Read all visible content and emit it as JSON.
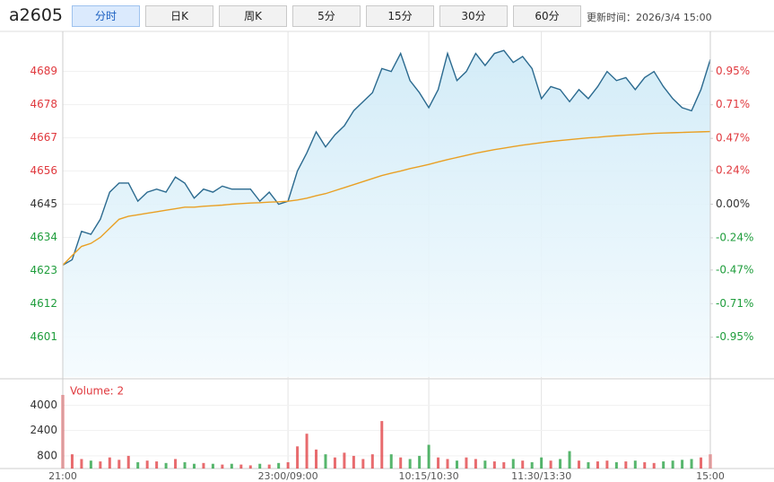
{
  "toolbar": {
    "symbol": "a2605",
    "tabs": [
      "分时",
      "日K",
      "周K",
      "5分",
      "15分",
      "30分",
      "60分"
    ],
    "active_tab": 0,
    "update_time": "更新时间：2026/3/4 15:00"
  },
  "chart_data": [
    {
      "type": "line",
      "x": [
        0,
        5,
        10,
        15,
        20,
        25,
        30,
        35,
        40,
        45,
        50,
        55,
        60,
        65,
        70,
        75,
        80,
        85,
        90,
        95,
        100,
        105,
        110,
        115,
        120,
        125,
        130,
        135,
        140,
        145,
        150,
        155,
        160,
        165,
        170,
        175,
        180,
        185,
        190,
        195,
        200,
        205,
        210,
        215,
        220,
        225,
        230,
        235,
        240,
        245,
        250,
        255,
        260,
        265,
        270,
        275,
        280,
        285,
        290,
        295,
        300,
        305,
        310,
        315,
        320,
        325,
        330,
        335,
        340,
        345
      ],
      "xlim": [
        0,
        345
      ],
      "xticks": [
        {
          "value": 0,
          "label": "21:00"
        },
        {
          "value": 120,
          "label": "23:00/09:00"
        },
        {
          "value": 195,
          "label": "10:15/10:30"
        },
        {
          "value": 255,
          "label": "11:30/13:30"
        },
        {
          "value": 345,
          "label": "15:00"
        }
      ],
      "series": [
        {
          "name": "price",
          "color": "#2b6a8f",
          "values": [
            4624.8,
            4626.6,
            4636,
            4635,
            4640,
            4649,
            4652,
            4652,
            4646,
            4649,
            4650,
            4649,
            4654,
            4652,
            4647,
            4650,
            4649,
            4651,
            4650,
            4650,
            4650,
            4646,
            4649,
            4645,
            4646,
            4656,
            4662,
            4669,
            4664,
            4668,
            4671,
            4676,
            4679,
            4682,
            4690,
            4689,
            4695,
            4686,
            4682,
            4677,
            4683,
            4695,
            4686,
            4689,
            4695,
            4691,
            4695,
            4696,
            4692,
            4694,
            4690,
            4680,
            4684,
            4683,
            4679,
            4683,
            4680,
            4684,
            4689,
            4686,
            4687,
            4683,
            4687,
            4689,
            4684,
            4680,
            4677,
            4676,
            4683,
            4693
          ]
        },
        {
          "name": "average",
          "color": "#e9a024",
          "values": [
            4624.8,
            4628,
            4631,
            4632,
            4634,
            4637,
            4640,
            4641,
            4641.5,
            4642,
            4642.5,
            4643,
            4643.5,
            4644,
            4644,
            4644.3,
            4644.5,
            4644.7,
            4645,
            4645.2,
            4645.4,
            4645.5,
            4645.7,
            4645.8,
            4646,
            4646.4,
            4647,
            4647.8,
            4648.5,
            4649.5,
            4650.5,
            4651.5,
            4652.5,
            4653.5,
            4654.5,
            4655.3,
            4656,
            4656.8,
            4657.5,
            4658.2,
            4659,
            4659.8,
            4660.5,
            4661.2,
            4661.9,
            4662.5,
            4663.1,
            4663.6,
            4664.1,
            4664.6,
            4665,
            4665.4,
            4665.8,
            4666.1,
            4666.4,
            4666.7,
            4667,
            4667.2,
            4667.5,
            4667.7,
            4667.9,
            4668.1,
            4668.3,
            4668.5,
            4668.6,
            4668.7,
            4668.8,
            4668.9,
            4669,
            4669.1
          ]
        }
      ],
      "ylim": [
        4587.7,
        4702.3
      ],
      "yticks": [
        4689,
        4678,
        4667,
        4656,
        4645,
        4634,
        4623,
        4612,
        4601
      ],
      "y2lim": [
        -1.2336,
        1.2336
      ],
      "y2ticks": [
        {
          "value": 0.95,
          "label": "0.95%"
        },
        {
          "value": 0.71,
          "label": "0.71%"
        },
        {
          "value": 0.47,
          "label": "0.47%"
        },
        {
          "value": 0.24,
          "label": "0.24%"
        },
        {
          "value": 0,
          "label": "0.00%"
        },
        {
          "value": -0.24,
          "label": "-0.24%"
        },
        {
          "value": -0.47,
          "label": "-0.47%"
        },
        {
          "value": -0.71,
          "label": "-0.71%"
        },
        {
          "value": -0.95,
          "label": "-0.95%"
        }
      ],
      "up_color": "#e0393e",
      "down_color": "#1f9d3c",
      "flat_color": "#333333",
      "fill_color": "#d6eef8"
    },
    {
      "type": "bar",
      "label": "Volume: 2",
      "values": [
        4650,
        900,
        600,
        500,
        450,
        700,
        550,
        800,
        400,
        500,
        450,
        350,
        600,
        400,
        300,
        350,
        300,
        250,
        300,
        250,
        200,
        300,
        250,
        350,
        400,
        1400,
        2200,
        1200,
        900,
        700,
        1000,
        800,
        600,
        900,
        3000,
        900,
        700,
        600,
        800,
        1500,
        700,
        600,
        500,
        700,
        600,
        500,
        450,
        400,
        600,
        500,
        400,
        700,
        500,
        600,
        1100,
        500,
        400,
        450,
        500,
        400,
        450,
        500,
        400,
        350,
        450,
        500,
        550,
        600,
        700,
        900
      ],
      "ylim": [
        0,
        5500
      ],
      "yticks": [
        800,
        2400,
        4000
      ],
      "label_color": "#e0393e"
    }
  ]
}
